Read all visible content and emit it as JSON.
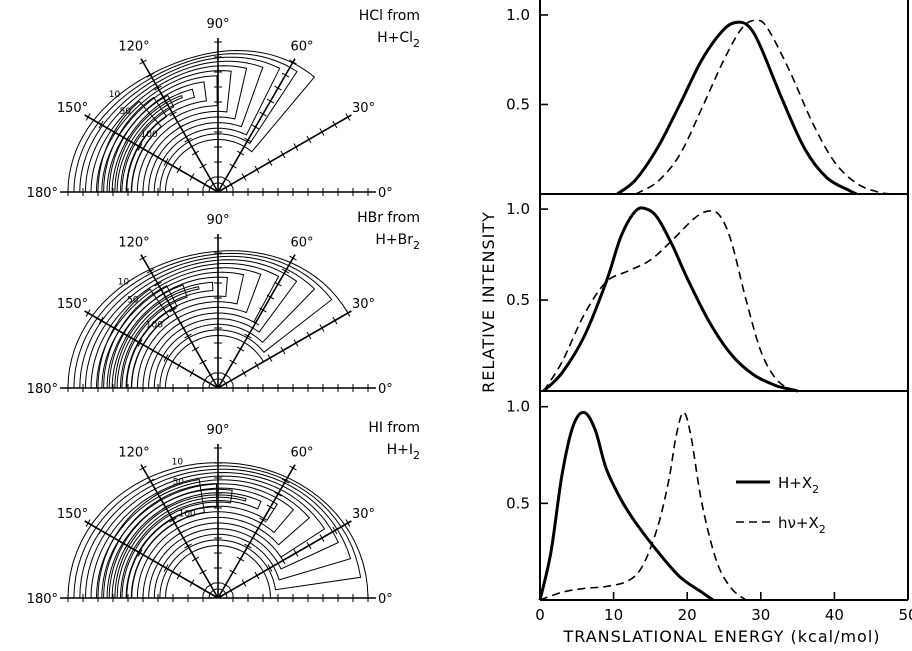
{
  "chart_data": [
    {
      "type": "polar-contour",
      "title_line1": "HCl from",
      "title_line2": "H+Cl",
      "title_sub": "2",
      "angle_labels": [
        "180°",
        "150°",
        "120°",
        "90°",
        "60°",
        "30°",
        "0°"
      ],
      "contour_labels": [
        "10",
        "50",
        "100"
      ],
      "peak_angle_deg": 140,
      "angular_extent_deg": [
        180,
        50
      ]
    },
    {
      "type": "polar-contour",
      "title_line1": "HBr from",
      "title_line2": "H+Br",
      "title_sub": "2",
      "angle_labels": [
        "180°",
        "150°",
        "120°",
        "90°",
        "60°",
        "30°",
        "0°"
      ],
      "contour_labels": [
        "10",
        "50",
        "100"
      ],
      "peak_angle_deg": 135,
      "angular_extent_deg": [
        180,
        30
      ]
    },
    {
      "type": "polar-contour",
      "title_line1": "HI from",
      "title_line2": "H+I",
      "title_sub": "2",
      "angle_labels": [
        "180°",
        "150°",
        "120°",
        "90°",
        "60°",
        "30°",
        "0°"
      ],
      "contour_labels": [
        "10",
        "50",
        "100"
      ],
      "peak_angle_deg": 110,
      "angular_extent_deg": [
        180,
        0
      ]
    },
    {
      "type": "line",
      "panel": "HCl",
      "ylabel": "RELATIVE INTENSITY",
      "xlabel": "TRANSLATIONAL ENERGY (kcal/mol)",
      "xlim": [
        0,
        50
      ],
      "ylim": [
        0,
        1.05
      ],
      "yticks": [
        "0.5",
        "1.0"
      ],
      "xticks": [
        "0",
        "10",
        "20",
        "30",
        "40",
        "50"
      ],
      "series": [
        {
          "style": "solid",
          "x": [
            10.5,
            13,
            16,
            19,
            22,
            25,
            27,
            28.5,
            30,
            33,
            36,
            39,
            42,
            43
          ],
          "y": [
            0.0,
            0.08,
            0.26,
            0.5,
            0.75,
            0.92,
            0.96,
            0.93,
            0.82,
            0.52,
            0.25,
            0.09,
            0.02,
            0.0
          ]
        },
        {
          "style": "dashed",
          "x": [
            13,
            16,
            19,
            22,
            25,
            27.5,
            29.5,
            31,
            34,
            37,
            40,
            43,
            46,
            48
          ],
          "y": [
            0.0,
            0.07,
            0.22,
            0.48,
            0.75,
            0.93,
            0.97,
            0.92,
            0.68,
            0.4,
            0.18,
            0.06,
            0.01,
            0.0
          ]
        }
      ]
    },
    {
      "type": "line",
      "panel": "HBr",
      "xlim": [
        0,
        50
      ],
      "ylim": [
        0,
        1.05
      ],
      "yticks": [
        "0.5",
        "1.0"
      ],
      "series": [
        {
          "style": "solid",
          "x": [
            0.5,
            3,
            6,
            9,
            11,
            13,
            14.5,
            16,
            18,
            20,
            23,
            26,
            29,
            32,
            34,
            35
          ],
          "y": [
            0.0,
            0.1,
            0.3,
            0.6,
            0.85,
            0.99,
            1.0,
            0.95,
            0.8,
            0.62,
            0.38,
            0.2,
            0.09,
            0.03,
            0.01,
            0.0
          ]
        },
        {
          "style": "dashed",
          "x": [
            0.5,
            3,
            6,
            9,
            12,
            15,
            18,
            21,
            23,
            24.5,
            26,
            28,
            30,
            32,
            34,
            35.5
          ],
          "y": [
            0.0,
            0.16,
            0.42,
            0.6,
            0.66,
            0.72,
            0.83,
            0.95,
            0.99,
            0.96,
            0.82,
            0.5,
            0.22,
            0.07,
            0.01,
            0.0
          ]
        }
      ]
    },
    {
      "type": "line",
      "panel": "HI",
      "xlim": [
        0,
        50
      ],
      "ylim": [
        0,
        1.05
      ],
      "yticks": [
        "0.5",
        "1.0"
      ],
      "series": [
        {
          "name": "H+X",
          "name_sub": "2",
          "style": "solid",
          "x": [
            0,
            1.5,
            3,
            4.5,
            6,
            7.5,
            9,
            11,
            13,
            16,
            19,
            22,
            23.5
          ],
          "y": [
            0.0,
            0.25,
            0.65,
            0.9,
            0.97,
            0.88,
            0.68,
            0.52,
            0.4,
            0.25,
            0.12,
            0.04,
            0.0
          ]
        },
        {
          "name": "hν+X",
          "name_sub": "2",
          "style": "dashed",
          "x": [
            0,
            3,
            6,
            9,
            12,
            14,
            16,
            17.5,
            18.5,
            19.5,
            20.5,
            22,
            24,
            26,
            28
          ],
          "y": [
            0.0,
            0.04,
            0.06,
            0.07,
            0.1,
            0.18,
            0.38,
            0.62,
            0.85,
            0.97,
            0.85,
            0.5,
            0.2,
            0.06,
            0.0
          ]
        }
      ]
    }
  ]
}
